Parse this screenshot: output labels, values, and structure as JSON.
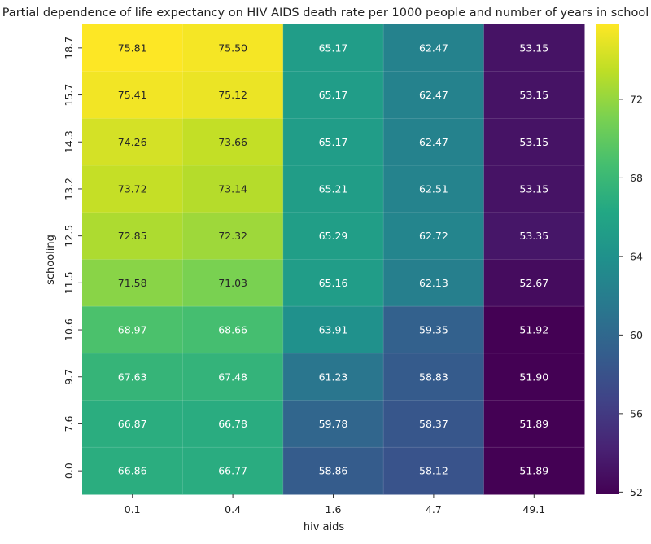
{
  "chart_data": {
    "type": "heatmap",
    "title": "Partial dependence of life expectancy on HIV AIDS death rate per 1000 people and number of years in school",
    "xlabel": "hiv aids",
    "ylabel": "schooling",
    "x_categories": [
      "0.1",
      "0.4",
      "1.6",
      "4.7",
      "49.1"
    ],
    "y_categories": [
      "18.7",
      "15.7",
      "14.3",
      "13.2",
      "12.5",
      "11.5",
      "10.6",
      "9.7",
      "7.6",
      "0.0"
    ],
    "values": [
      [
        75.81,
        75.5,
        65.17,
        62.47,
        53.15
      ],
      [
        75.41,
        75.12,
        65.17,
        62.47,
        53.15
      ],
      [
        74.26,
        73.66,
        65.17,
        62.47,
        53.15
      ],
      [
        73.72,
        73.14,
        65.21,
        62.51,
        53.15
      ],
      [
        72.85,
        72.32,
        65.29,
        62.72,
        53.35
      ],
      [
        71.58,
        71.03,
        65.16,
        62.13,
        52.67
      ],
      [
        68.97,
        68.66,
        63.91,
        59.35,
        51.92
      ],
      [
        67.63,
        67.48,
        61.23,
        58.83,
        51.9
      ],
      [
        66.87,
        66.78,
        59.78,
        58.37,
        51.89
      ],
      [
        66.86,
        66.77,
        58.86,
        58.12,
        51.89
      ]
    ],
    "colorbar": {
      "range": [
        51.89,
        75.81
      ],
      "ticks": [
        52,
        56,
        60,
        64,
        68,
        72
      ],
      "colormap": "viridis"
    },
    "annotation_format": "2 decimals",
    "grid": false
  }
}
